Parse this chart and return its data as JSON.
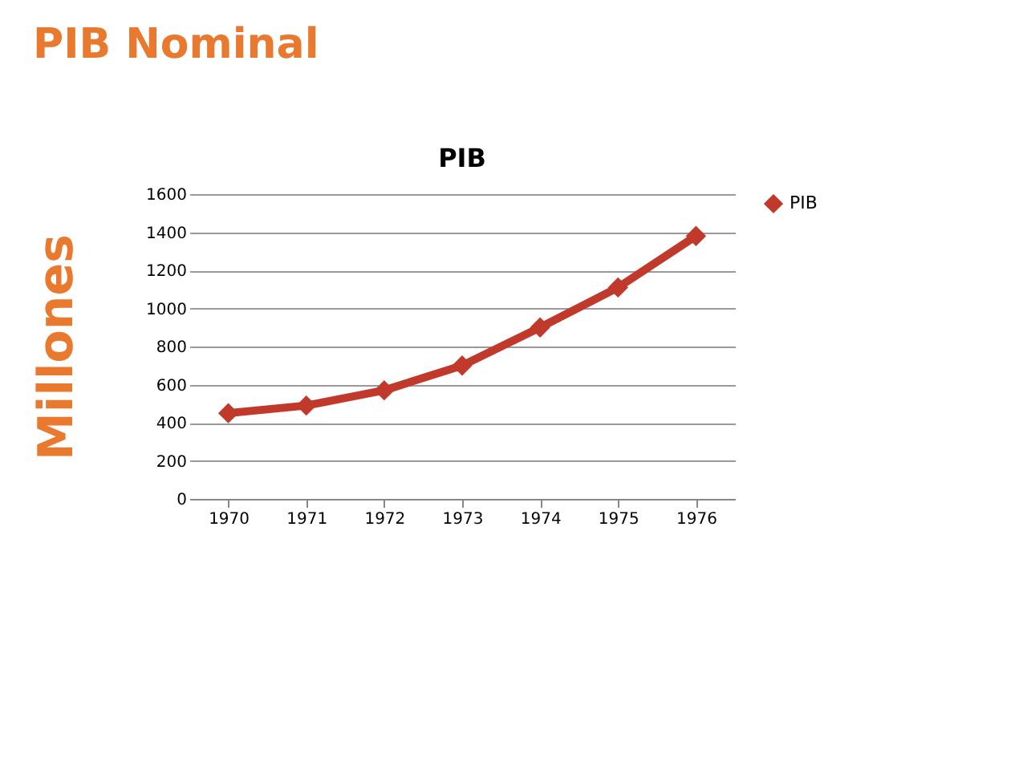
{
  "chart_data": {
    "type": "line",
    "title": "PIB Nominal",
    "subtitle": "PIB",
    "ylabel": "Millones",
    "categories": [
      "1970",
      "1971",
      "1972",
      "1973",
      "1974",
      "1975",
      "1976"
    ],
    "series": [
      {
        "name": "PIB",
        "color": "#c0392b",
        "values": [
          450,
          490,
          570,
          700,
          900,
          1110,
          1380
        ]
      }
    ],
    "ylim": [
      0,
      1600
    ],
    "yticks": [
      0,
      200,
      400,
      600,
      800,
      1000,
      1200,
      1400,
      1600
    ],
    "grid": "y",
    "legend": "right",
    "marker": "diamond",
    "line_style": "solid"
  }
}
